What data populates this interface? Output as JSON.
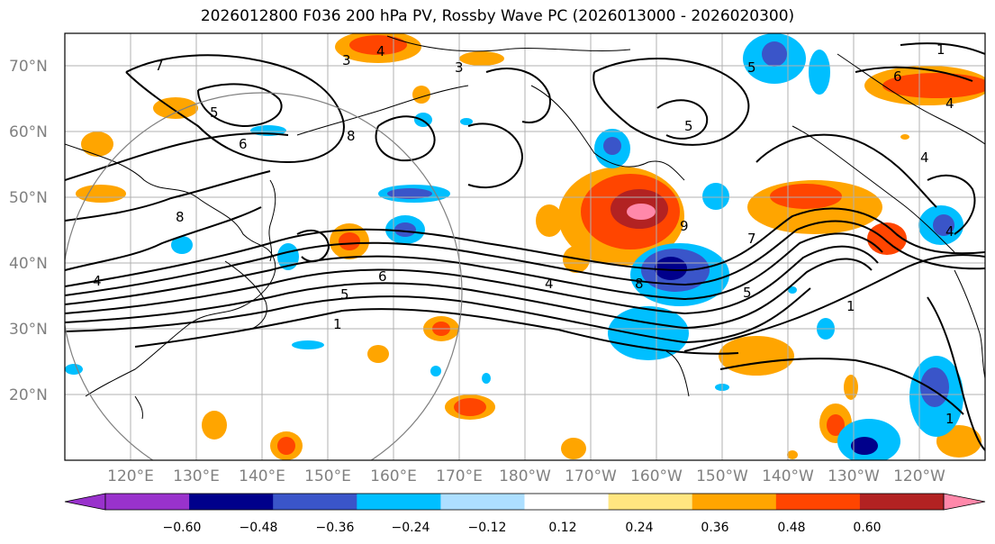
{
  "title": "2026012800 F036 200 hPa PV, Rossby Wave PC (2026013000 - 2026020300)",
  "map": {
    "lat_labels": [
      "70°N",
      "60°N",
      "50°N",
      "40°N",
      "30°N",
      "20°N"
    ],
    "lon_labels": [
      "120°E",
      "130°E",
      "140°E",
      "150°E",
      "160°E",
      "170°E",
      "180°W",
      "170°W",
      "160°W",
      "150°W",
      "140°W",
      "130°W",
      "120°W"
    ],
    "contour_labels": [
      "5",
      "6",
      "8",
      "7",
      "4",
      "3",
      "8",
      "5",
      "6",
      "9",
      "7",
      "1",
      "8",
      "5",
      "4",
      "6",
      "4",
      "5",
      "1",
      "5",
      "1",
      "3",
      "4",
      "1",
      "4",
      "4"
    ]
  },
  "colorbar": {
    "ticks": [
      "−0.60",
      "−0.48",
      "−0.36",
      "−0.24",
      "−0.12",
      "0.12",
      "0.24",
      "0.36",
      "0.48",
      "0.60"
    ],
    "colors": [
      "#9932cc",
      "#00008b",
      "#3a55c9",
      "#00bfff",
      "#addfff",
      "#ffffff",
      "#ffe680",
      "#ffa500",
      "#ff4500",
      "#b22222",
      "#ff88aa",
      "#ff88aa"
    ],
    "tick_values": [
      -0.6,
      -0.48,
      -0.36,
      -0.24,
      -0.12,
      0.12,
      0.24,
      0.36,
      0.48,
      0.6
    ]
  }
}
